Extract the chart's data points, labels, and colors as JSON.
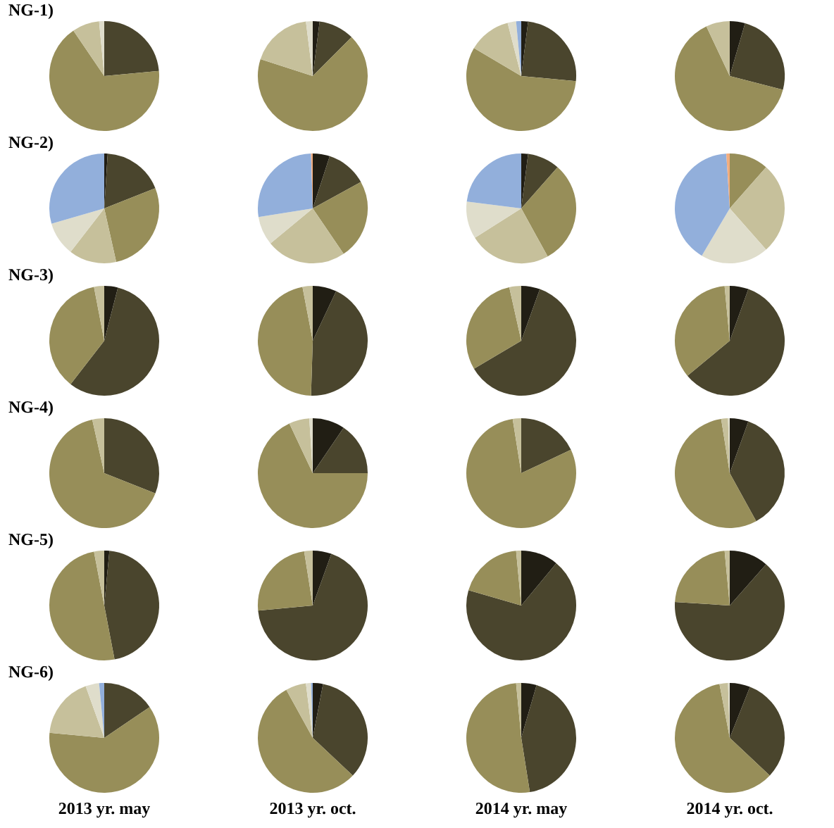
{
  "chart_data": [
    {
      "type": "pie",
      "title": "NG-1)",
      "categories": [
        null,
        null,
        null,
        null
      ],
      "values": [
        23.5,
        67,
        8,
        1.5
      ],
      "colors": [
        "#4a452d",
        "#978e59",
        "#c6c09b",
        "#dfddcb"
      ]
    },
    {
      "type": "pie",
      "categories": [
        null,
        null,
        null,
        null,
        null
      ],
      "values": [
        2,
        10.5,
        67.5,
        18,
        2
      ],
      "colors": [
        "#211e14",
        "#4a452d",
        "#978e59",
        "#c6c09b",
        "#dfddcb"
      ]
    },
    {
      "type": "pie",
      "categories": [
        null,
        null,
        null,
        null,
        null,
        null
      ],
      "values": [
        2,
        24.5,
        57,
        12.5,
        2.5,
        1.5
      ],
      "colors": [
        "#211e14",
        "#4a452d",
        "#978e59",
        "#c6c09b",
        "#dfddcb",
        "#92afdb"
      ]
    },
    {
      "type": "pie",
      "categories": [
        null,
        null,
        null,
        null
      ],
      "values": [
        4.5,
        24.5,
        64,
        7
      ],
      "colors": [
        "#211e14",
        "#4a452d",
        "#978e59",
        "#c6c09b"
      ]
    },
    {
      "type": "pie",
      "title": "NG-2)",
      "categories": [
        null,
        null,
        null,
        null,
        null,
        null
      ],
      "values": [
        1,
        18,
        27.5,
        14,
        10,
        29.5
      ],
      "colors": [
        "#211e14",
        "#4a452d",
        "#978e59",
        "#c6c09b",
        "#dfddcb",
        "#92afdb"
      ]
    },
    {
      "type": "pie",
      "categories": [
        null,
        null,
        null,
        null,
        null,
        null,
        null
      ],
      "values": [
        5,
        12,
        23.5,
        23.5,
        8.5,
        27,
        0.5
      ],
      "colors": [
        "#211e14",
        "#4a452d",
        "#978e59",
        "#c6c09b",
        "#dfddcb",
        "#92afdb",
        "#f2ad7f"
      ]
    },
    {
      "type": "pie",
      "categories": [
        null,
        null,
        null,
        null,
        null,
        null
      ],
      "values": [
        2,
        9.5,
        30.5,
        24,
        11,
        23
      ],
      "colors": [
        "#211e14",
        "#4a452d",
        "#978e59",
        "#c6c09b",
        "#dfddcb",
        "#92afdb"
      ]
    },
    {
      "type": "pie",
      "categories": [
        null,
        null,
        null,
        null,
        null
      ],
      "values": [
        11.5,
        27,
        20,
        40.5,
        1
      ],
      "colors": [
        "#978e59",
        "#c6c09b",
        "#dfddcb",
        "#92afdb",
        "#f2ad7f"
      ]
    },
    {
      "type": "pie",
      "title": "NG-3)",
      "categories": [
        null,
        null,
        null,
        null
      ],
      "values": [
        4,
        56.5,
        36.5,
        3
      ],
      "colors": [
        "#211e14",
        "#4a452d",
        "#978e59",
        "#c6c09b"
      ]
    },
    {
      "type": "pie",
      "categories": [
        null,
        null,
        null,
        null
      ],
      "values": [
        7,
        43.5,
        46.5,
        3
      ],
      "colors": [
        "#211e14",
        "#4a452d",
        "#978e59",
        "#c6c09b"
      ]
    },
    {
      "type": "pie",
      "categories": [
        null,
        null,
        null,
        null
      ],
      "values": [
        5.5,
        61,
        30,
        3.5
      ],
      "colors": [
        "#211e14",
        "#4a452d",
        "#978e59",
        "#c6c09b"
      ]
    },
    {
      "type": "pie",
      "categories": [
        null,
        null,
        null,
        null
      ],
      "values": [
        5.5,
        58.5,
        34.5,
        1.5
      ],
      "colors": [
        "#211e14",
        "#4a452d",
        "#978e59",
        "#c6c09b"
      ]
    },
    {
      "type": "pie",
      "title": "NG-4)",
      "categories": [
        null,
        null,
        null
      ],
      "values": [
        31,
        65.5,
        3.5
      ],
      "colors": [
        "#4a452d",
        "#978e59",
        "#c6c09b"
      ]
    },
    {
      "type": "pie",
      "categories": [
        null,
        null,
        null,
        null,
        null
      ],
      "values": [
        9.5,
        15.5,
        68,
        6,
        1
      ],
      "colors": [
        "#211e14",
        "#4a452d",
        "#978e59",
        "#c6c09b",
        "#dfddcb"
      ]
    },
    {
      "type": "pie",
      "categories": [
        null,
        null,
        null
      ],
      "values": [
        18,
        79.5,
        2.5
      ],
      "colors": [
        "#4a452d",
        "#978e59",
        "#c6c09b"
      ]
    },
    {
      "type": "pie",
      "categories": [
        null,
        null,
        null,
        null,
        null
      ],
      "values": [
        5.5,
        36.5,
        55.5,
        2,
        0.5
      ],
      "colors": [
        "#211e14",
        "#4a452d",
        "#978e59",
        "#c6c09b",
        "#dfddcb"
      ]
    },
    {
      "type": "pie",
      "title": "NG-5)",
      "categories": [
        null,
        null,
        null,
        null
      ],
      "values": [
        1.5,
        45.5,
        50,
        3
      ],
      "colors": [
        "#211e14",
        "#4a452d",
        "#978e59",
        "#c6c09b"
      ]
    },
    {
      "type": "pie",
      "categories": [
        null,
        null,
        null,
        null
      ],
      "values": [
        5.5,
        68,
        24,
        2.5
      ],
      "colors": [
        "#211e14",
        "#4a452d",
        "#978e59",
        "#c6c09b"
      ]
    },
    {
      "type": "pie",
      "categories": [
        null,
        null,
        null,
        null
      ],
      "values": [
        11,
        68.5,
        19,
        1.5
      ],
      "colors": [
        "#211e14",
        "#4a452d",
        "#978e59",
        "#c6c09b"
      ]
    },
    {
      "type": "pie",
      "categories": [
        null,
        null,
        null,
        null
      ],
      "values": [
        11.5,
        64.5,
        22.5,
        1.5
      ],
      "colors": [
        "#211e14",
        "#4a452d",
        "#978e59",
        "#c6c09b"
      ]
    },
    {
      "type": "pie",
      "title": "NG-6)",
      "categories": [
        null,
        null,
        null,
        null,
        null
      ],
      "values": [
        15.5,
        61,
        18,
        4,
        1.5
      ],
      "colors": [
        "#4a452d",
        "#978e59",
        "#c6c09b",
        "#dfddcb",
        "#92afdb"
      ],
      "annotations": [
        "2013 yr. may"
      ]
    },
    {
      "type": "pie",
      "categories": [
        null,
        null,
        null,
        null,
        null,
        null
      ],
      "values": [
        3,
        34,
        55,
        6,
        1.5,
        0.5
      ],
      "colors": [
        "#211e14",
        "#4a452d",
        "#978e59",
        "#c6c09b",
        "#dfddcb",
        "#92afdb"
      ],
      "annotations": [
        "2013 yr. oct."
      ]
    },
    {
      "type": "pie",
      "categories": [
        null,
        null,
        null,
        null
      ],
      "values": [
        4.5,
        43,
        51,
        1.5
      ],
      "colors": [
        "#211e14",
        "#4a452d",
        "#978e59",
        "#c6c09b"
      ],
      "annotations": [
        "2014 yr. may"
      ]
    },
    {
      "type": "pie",
      "categories": [
        null,
        null,
        null,
        null,
        null
      ],
      "values": [
        6,
        31,
        60,
        2.5,
        0.5
      ],
      "colors": [
        "#211e14",
        "#4a452d",
        "#978e59",
        "#c6c09b",
        "#dfddcb"
      ],
      "annotations": [
        "2014 yr. oct."
      ]
    }
  ]
}
